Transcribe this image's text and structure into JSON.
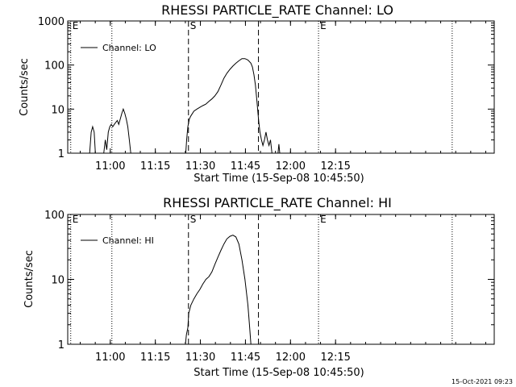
{
  "footer_timestamp": "15-Oct-2021 09:23",
  "chart_data": [
    {
      "type": "line",
      "title": "RHESSI PARTICLE_RATE Channel: LO",
      "xlabel": "Start Time (15-Sep-08 10:45:50)",
      "ylabel": "Counts/sec",
      "yscale": "log",
      "ylim": [
        1,
        1000
      ],
      "xlim_minutes_after_start": [
        0,
        142
      ],
      "x_ticks": [
        {
          "label": "11:00",
          "t": 14.17
        },
        {
          "label": "11:15",
          "t": 29.17
        },
        {
          "label": "11:30",
          "t": 44.17
        },
        {
          "label": "11:45",
          "t": 59.17
        },
        {
          "label": "12:00",
          "t": 74.17
        },
        {
          "label": "12:15",
          "t": 89.17
        }
      ],
      "y_ticks": [
        {
          "label": "1",
          "v": 1
        },
        {
          "label": "10",
          "v": 10
        },
        {
          "label": "100",
          "v": 100
        },
        {
          "label": "1000",
          "v": 1000
        }
      ],
      "legend": {
        "label": "Channel: LO",
        "position": "top-left"
      },
      "markers": [
        {
          "t": 1.0,
          "style": "dotted",
          "label": "E"
        },
        {
          "t": 14.7,
          "style": "dotted",
          "label": ""
        },
        {
          "t": 40.2,
          "style": "dashed",
          "label": "S"
        },
        {
          "t": 63.5,
          "style": "dashed",
          "label": ""
        },
        {
          "t": 83.5,
          "style": "dotted",
          "label": "E"
        },
        {
          "t": 128.0,
          "style": "dotted",
          "label": ""
        }
      ],
      "series": [
        {
          "name": "Channel: LO",
          "segments": [
            [
              [
                7.3,
                1
              ],
              [
                7.8,
                3
              ],
              [
                8.3,
                4
              ],
              [
                8.8,
                3
              ],
              [
                9.2,
                1
              ]
            ],
            [
              [
                12.0,
                1
              ],
              [
                12.5,
                2
              ],
              [
                13.0,
                1.2
              ],
              [
                13.5,
                3
              ],
              [
                14.0,
                4
              ],
              [
                14.5,
                4.5
              ],
              [
                15.0,
                4
              ],
              [
                15.5,
                4.5
              ],
              [
                16.0,
                5
              ],
              [
                16.5,
                5.5
              ],
              [
                17.0,
                4.5
              ],
              [
                17.5,
                6
              ],
              [
                18.0,
                8
              ],
              [
                18.5,
                10
              ],
              [
                19.0,
                8
              ],
              [
                19.5,
                6
              ],
              [
                20.0,
                4
              ],
              [
                20.5,
                2
              ],
              [
                21.0,
                1
              ]
            ],
            [
              [
                39.3,
                1
              ],
              [
                39.6,
                2
              ],
              [
                40.0,
                4
              ],
              [
                40.5,
                6
              ],
              [
                41.0,
                7
              ],
              [
                42.0,
                9
              ],
              [
                43.0,
                10
              ],
              [
                44.0,
                11
              ],
              [
                45.0,
                12
              ],
              [
                46.0,
                13
              ],
              [
                47.0,
                15
              ],
              [
                48.0,
                17
              ],
              [
                49.0,
                20
              ],
              [
                50.0,
                25
              ],
              [
                51.0,
                35
              ],
              [
                52.0,
                50
              ],
              [
                53.0,
                65
              ],
              [
                54.0,
                80
              ],
              [
                55.0,
                95
              ],
              [
                56.0,
                110
              ],
              [
                57.0,
                125
              ],
              [
                58.0,
                140
              ],
              [
                59.0,
                140
              ],
              [
                60.0,
                130
              ],
              [
                61.0,
                110
              ],
              [
                61.5,
                90
              ],
              [
                62.0,
                60
              ],
              [
                62.5,
                35
              ],
              [
                63.0,
                15
              ],
              [
                63.5,
                6
              ],
              [
                64.0,
                3
              ],
              [
                64.5,
                2
              ],
              [
                65.0,
                1.5
              ],
              [
                65.5,
                2
              ],
              [
                66.0,
                3
              ],
              [
                66.5,
                2
              ],
              [
                67.0,
                1.5
              ],
              [
                67.5,
                2
              ],
              [
                68.0,
                1
              ]
            ],
            [
              [
                70.0,
                1
              ],
              [
                70.3,
                1.6
              ],
              [
                70.6,
                1
              ]
            ]
          ]
        }
      ]
    },
    {
      "type": "line",
      "title": "RHESSI PARTICLE_RATE Channel: HI",
      "xlabel": "Start Time (15-Sep-08 10:45:50)",
      "ylabel": "Counts/sec",
      "yscale": "log",
      "ylim": [
        1,
        100
      ],
      "xlim_minutes_after_start": [
        0,
        142
      ],
      "x_ticks": [
        {
          "label": "11:00",
          "t": 14.17
        },
        {
          "label": "11:15",
          "t": 29.17
        },
        {
          "label": "11:30",
          "t": 44.17
        },
        {
          "label": "11:45",
          "t": 59.17
        },
        {
          "label": "12:00",
          "t": 74.17
        },
        {
          "label": "12:15",
          "t": 89.17
        }
      ],
      "y_ticks": [
        {
          "label": "1",
          "v": 1
        },
        {
          "label": "10",
          "v": 10
        },
        {
          "label": "100",
          "v": 100
        }
      ],
      "legend": {
        "label": "Channel: HI",
        "position": "top-left"
      },
      "markers": [
        {
          "t": 1.0,
          "style": "dotted",
          "label": "E"
        },
        {
          "t": 14.7,
          "style": "dotted",
          "label": ""
        },
        {
          "t": 40.2,
          "style": "dashed",
          "label": "S"
        },
        {
          "t": 63.5,
          "style": "dashed",
          "label": ""
        },
        {
          "t": 83.5,
          "style": "dotted",
          "label": "E"
        },
        {
          "t": 128.0,
          "style": "dotted",
          "label": ""
        }
      ],
      "series": [
        {
          "name": "Channel: HI",
          "segments": [
            [
              [
                39.2,
                1
              ],
              [
                39.5,
                1.4
              ],
              [
                40.0,
                1.8
              ],
              [
                40.3,
                3
              ],
              [
                41.0,
                4
              ],
              [
                42.0,
                5
              ],
              [
                43.0,
                6
              ],
              [
                44.0,
                7
              ],
              [
                45.0,
                8.5
              ],
              [
                46.0,
                10
              ],
              [
                47.0,
                11
              ],
              [
                48.0,
                13
              ],
              [
                49.0,
                17
              ],
              [
                50.0,
                22
              ],
              [
                51.0,
                28
              ],
              [
                52.0,
                35
              ],
              [
                53.0,
                42
              ],
              [
                54.0,
                46
              ],
              [
                55.0,
                48
              ],
              [
                56.0,
                45
              ],
              [
                57.0,
                35
              ],
              [
                58.0,
                20
              ],
              [
                59.0,
                10
              ],
              [
                60.0,
                4
              ],
              [
                60.5,
                2
              ],
              [
                61.0,
                1
              ]
            ]
          ]
        }
      ]
    }
  ]
}
